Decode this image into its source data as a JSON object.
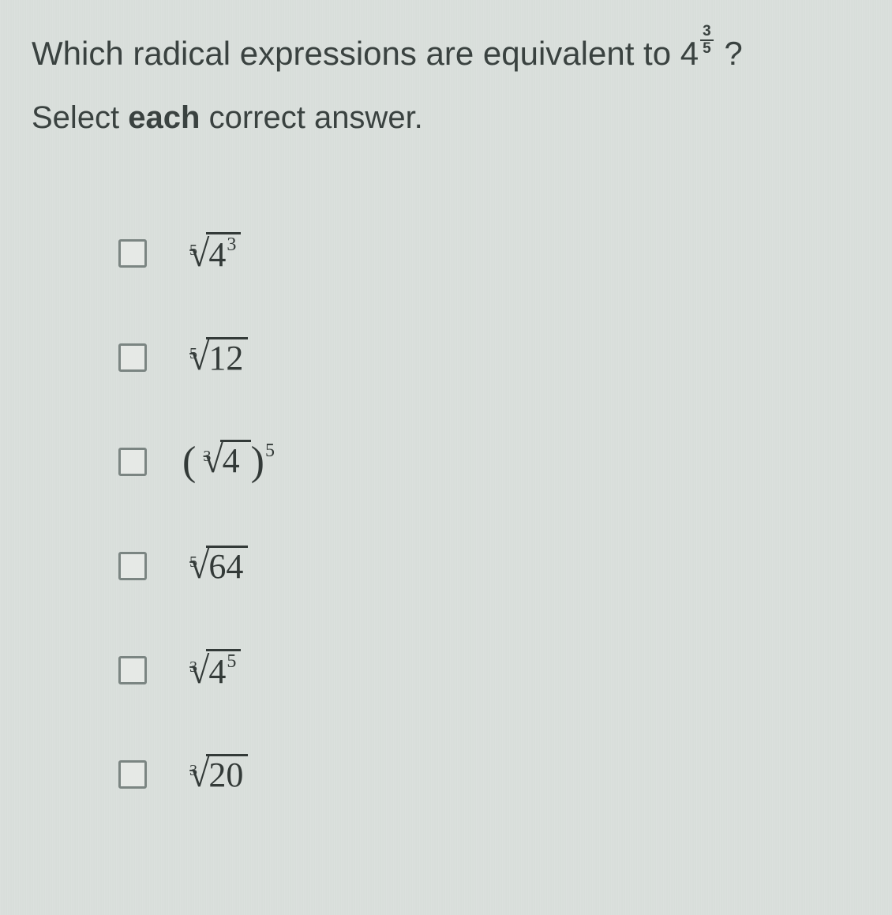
{
  "question": {
    "prefix": "Which radical expressions are equivalent to 4",
    "base": "4",
    "frac_num": "3",
    "frac_den": "5",
    "suffix": " ?"
  },
  "instruction_pre": "Select ",
  "instruction_bold": "each",
  "instruction_post": " correct answer.",
  "options": [
    {
      "type": "root",
      "index": "5",
      "radicand_base": "4",
      "radicand_exp": "3"
    },
    {
      "type": "root",
      "index": "5",
      "radicand_base": "12",
      "radicand_exp": ""
    },
    {
      "type": "paren-root-pow",
      "index": "3",
      "radicand_base": "4",
      "outer_exp": "5"
    },
    {
      "type": "root",
      "index": "5",
      "radicand_base": "64",
      "radicand_exp": ""
    },
    {
      "type": "root",
      "index": "3",
      "radicand_base": "4",
      "radicand_exp": "5"
    },
    {
      "type": "root",
      "index": "3",
      "radicand_base": "20",
      "radicand_exp": ""
    }
  ],
  "colors": {
    "text": "#3a4240",
    "math": "#333a38",
    "checkbox_border": "#7b8582",
    "checkbox_bg": "#e6e9e6",
    "background": "#d9dedb"
  },
  "fonts": {
    "question_size_pt": 32,
    "math_size_pt": 33
  }
}
